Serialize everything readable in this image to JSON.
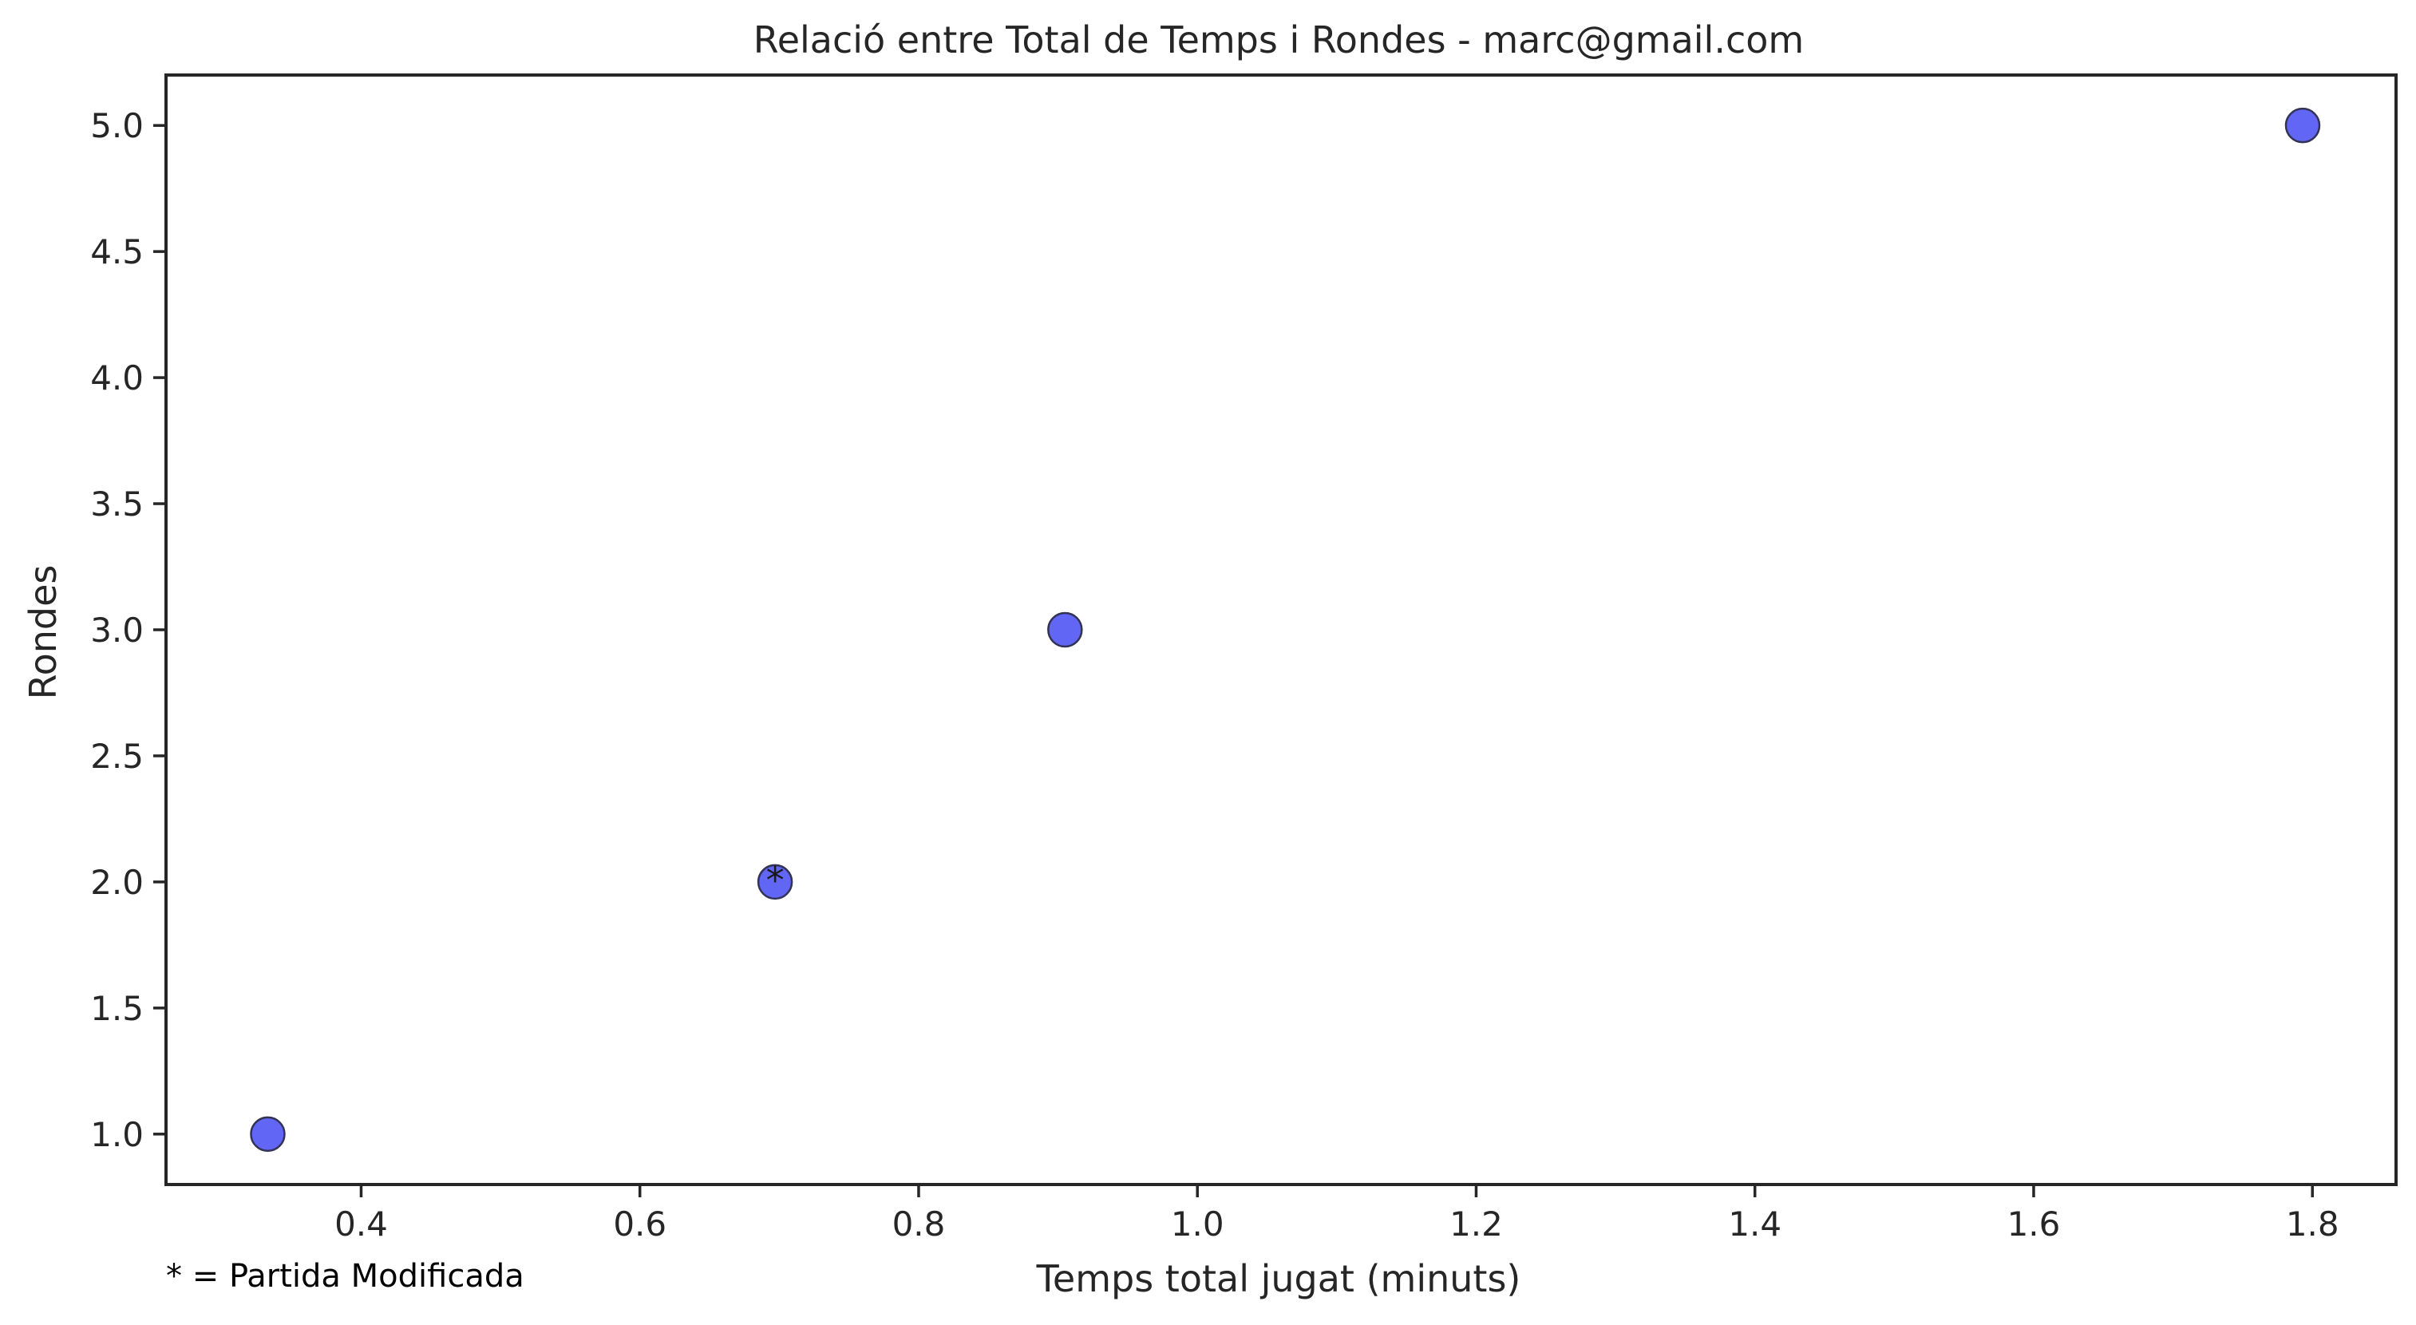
{
  "chart_data": {
    "type": "scatter",
    "title": "Relació entre Total de Temps i Rondes - marc@gmail.com",
    "xlabel": "Temps total jugat (minuts)",
    "ylabel": "Rondes",
    "xlim": [
      0.26,
      1.86
    ],
    "ylim": [
      0.8,
      5.2
    ],
    "x_ticks": [
      0.4,
      0.6,
      0.8,
      1.0,
      1.2,
      1.4,
      1.6,
      1.8
    ],
    "x_tick_labels": [
      "0.4",
      "0.6",
      "0.8",
      "1.0",
      "1.2",
      "1.4",
      "1.6",
      "1.8"
    ],
    "y_ticks": [
      1.0,
      1.5,
      2.0,
      2.5,
      3.0,
      3.5,
      4.0,
      4.5,
      5.0
    ],
    "y_tick_labels": [
      "1.0",
      "1.5",
      "2.0",
      "2.5",
      "3.0",
      "3.5",
      "4.0",
      "4.5",
      "5.0"
    ],
    "grid": false,
    "points": [
      {
        "x": 0.333,
        "y": 1.0,
        "label": ""
      },
      {
        "x": 0.697,
        "y": 2.0,
        "label": "*"
      },
      {
        "x": 0.905,
        "y": 3.0,
        "label": ""
      },
      {
        "x": 1.793,
        "y": 5.0,
        "label": ""
      }
    ],
    "marker_color": "#5a5ef4",
    "marker_edge_color": "#333355",
    "footnote": "* = Partida Modificada"
  }
}
